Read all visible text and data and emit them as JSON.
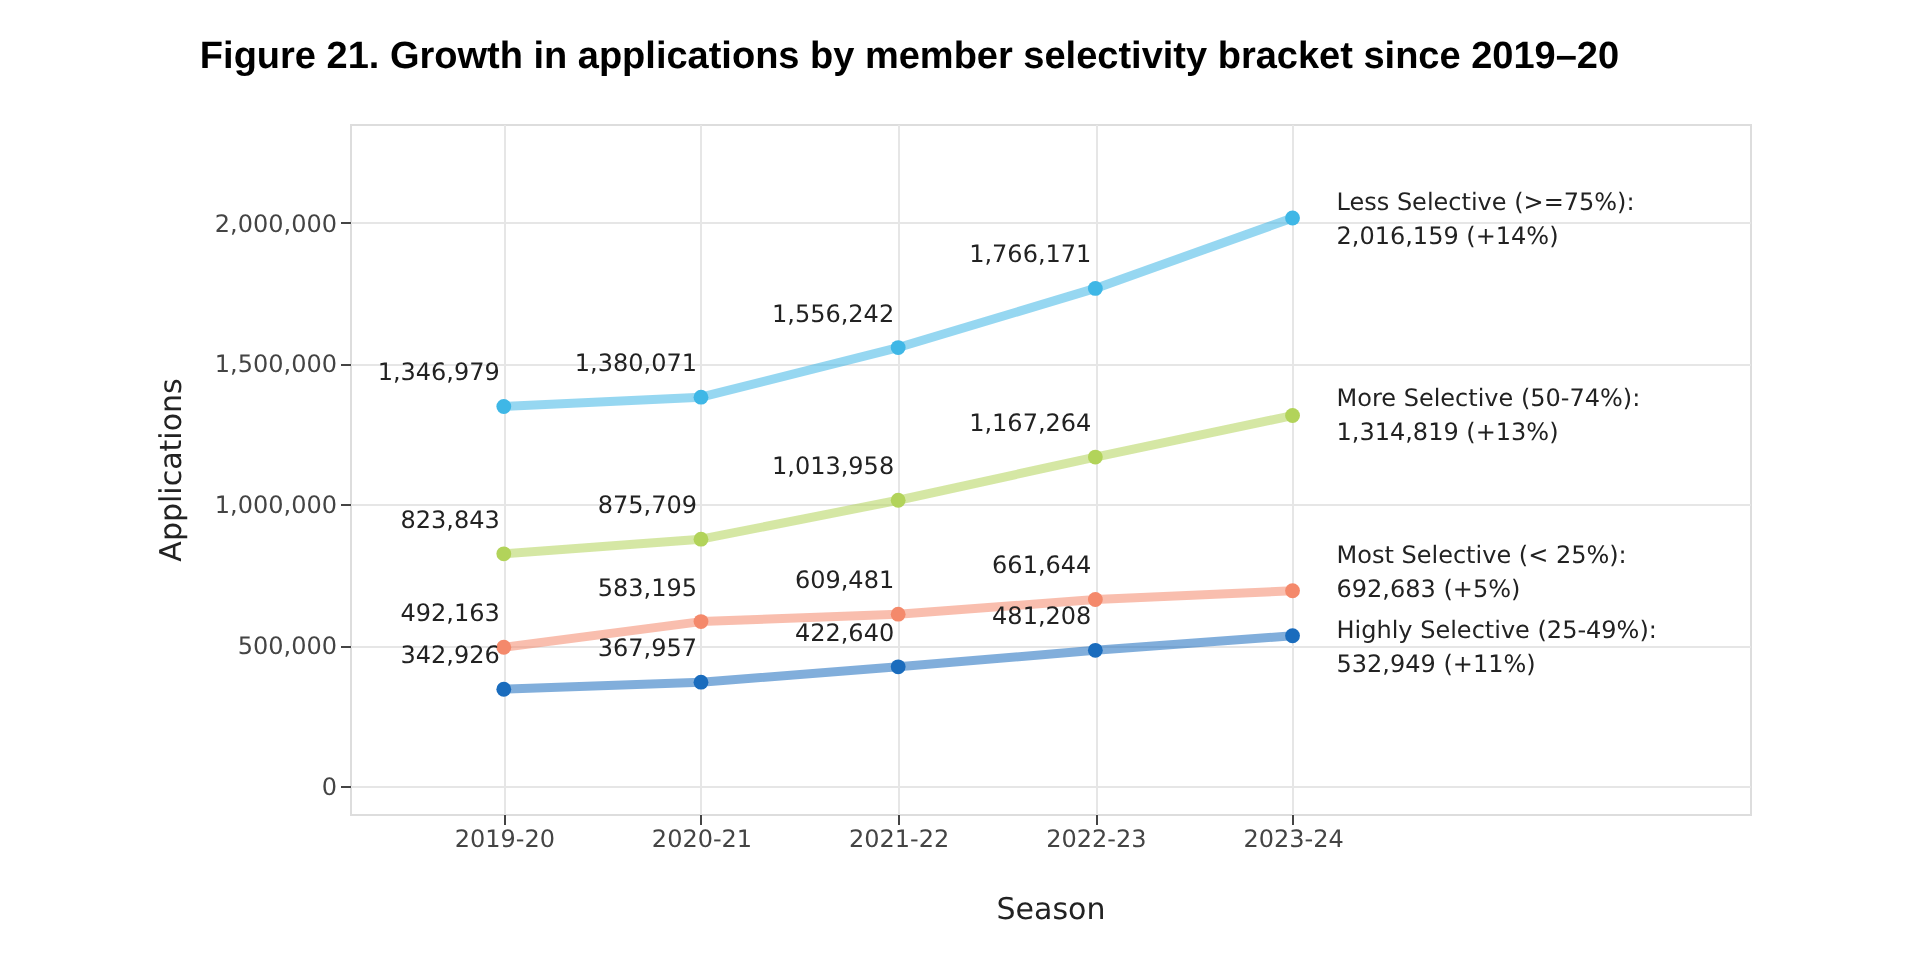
{
  "chart_data": {
    "type": "line",
    "title": "Figure 21. Growth in applications by member selectivity bracket since 2019–20",
    "xlabel": "Season",
    "ylabel": "Applications",
    "categories": [
      "2019-20",
      "2020-21",
      "2021-22",
      "2022-23",
      "2023-24"
    ],
    "ylim": [
      -100000,
      2350000
    ],
    "yticks": [
      {
        "value": 0,
        "label": "0"
      },
      {
        "value": 500000,
        "label": "500,000"
      },
      {
        "value": 1000000,
        "label": "1,000,000"
      },
      {
        "value": 1500000,
        "label": "1,500,000"
      },
      {
        "value": 2000000,
        "label": "2,000,000"
      }
    ],
    "grid": true,
    "legend": false,
    "marker": "circle",
    "line_style": "solid",
    "series": [
      {
        "name": "Less Selective (>=75%):",
        "color": "#3fb7e6",
        "values": [
          1346979,
          1380071,
          1556242,
          1766171,
          2016159
        ],
        "value_labels": [
          "1,346,979",
          "1,380,071",
          "1,556,242",
          "1,766,171",
          "2,016,159 (+14%)"
        ]
      },
      {
        "name": "More Selective (50-74%):",
        "color": "#b2d35a",
        "values": [
          823843,
          875709,
          1013958,
          1167264,
          1314819
        ],
        "value_labels": [
          "823,843",
          "875,709",
          "1,013,958",
          "1,167,264",
          "1,314,819 (+13%)"
        ]
      },
      {
        "name": "Most Selective (< 25%):",
        "color": "#f4896b",
        "values": [
          492163,
          583195,
          609481,
          661644,
          692683
        ],
        "value_labels": [
          "492,163",
          "583,195",
          "609,481",
          "661,644",
          "692,683 (+5%)"
        ]
      },
      {
        "name": "Highly Selective (25-49%):",
        "color": "#1a6cbd",
        "values": [
          342926,
          367957,
          422640,
          481208,
          532949
        ],
        "value_labels": [
          "342,926",
          "367,957",
          "422,640",
          "481,208",
          "532,949 (+11%)"
        ]
      }
    ]
  }
}
